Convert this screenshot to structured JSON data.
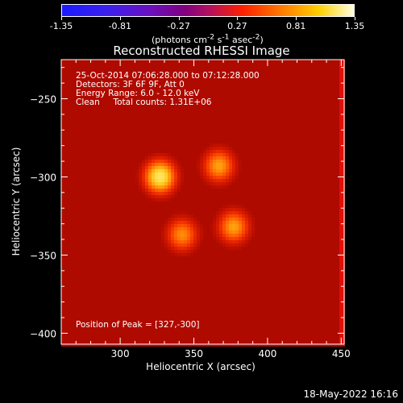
{
  "colorbar": {
    "ticks": [
      "-1.35",
      "-0.81",
      "-0.27",
      "0.27",
      "0.81",
      "1.35"
    ],
    "unit_label_html": "(photons cm<sup>-2</sup> s<sup>-1</sup> asec<sup>-2</sup>)",
    "range": [
      -1.35,
      1.35
    ]
  },
  "chart_data": {
    "type": "heatmap",
    "title": "Reconstructed RHESSI Image",
    "xlabel": "Heliocentric X (arcsec)",
    "ylabel": "Heliocentric Y (arcsec)",
    "xlim": [
      260,
      452
    ],
    "ylim": [
      -407,
      -225
    ],
    "xticks": [
      300,
      350,
      400,
      450
    ],
    "yticks": [
      -250,
      -300,
      -350,
      -400
    ],
    "sources": [
      {
        "x": 327,
        "y": -300,
        "peak": 1.35
      },
      {
        "x": 367,
        "y": -293,
        "peak": 1.1
      },
      {
        "x": 342,
        "y": -337,
        "peak": 1.05
      },
      {
        "x": 377,
        "y": -332,
        "peak": 1.1
      }
    ],
    "background_level": 0.45
  },
  "annotations": {
    "date_range": "25-Oct-2014 07:06:28.000 to 07:12:28.000",
    "detectors": "Detectors: 3F 6F 9F, Att 0",
    "energy": "Energy Range: 6.0 - 12.0 keV",
    "clean": "Clean     Total counts: 1.31E+06",
    "peak_position": "Position of Peak = [327,-300]"
  },
  "footer": {
    "timestamp": "18-May-2022 16:16"
  }
}
